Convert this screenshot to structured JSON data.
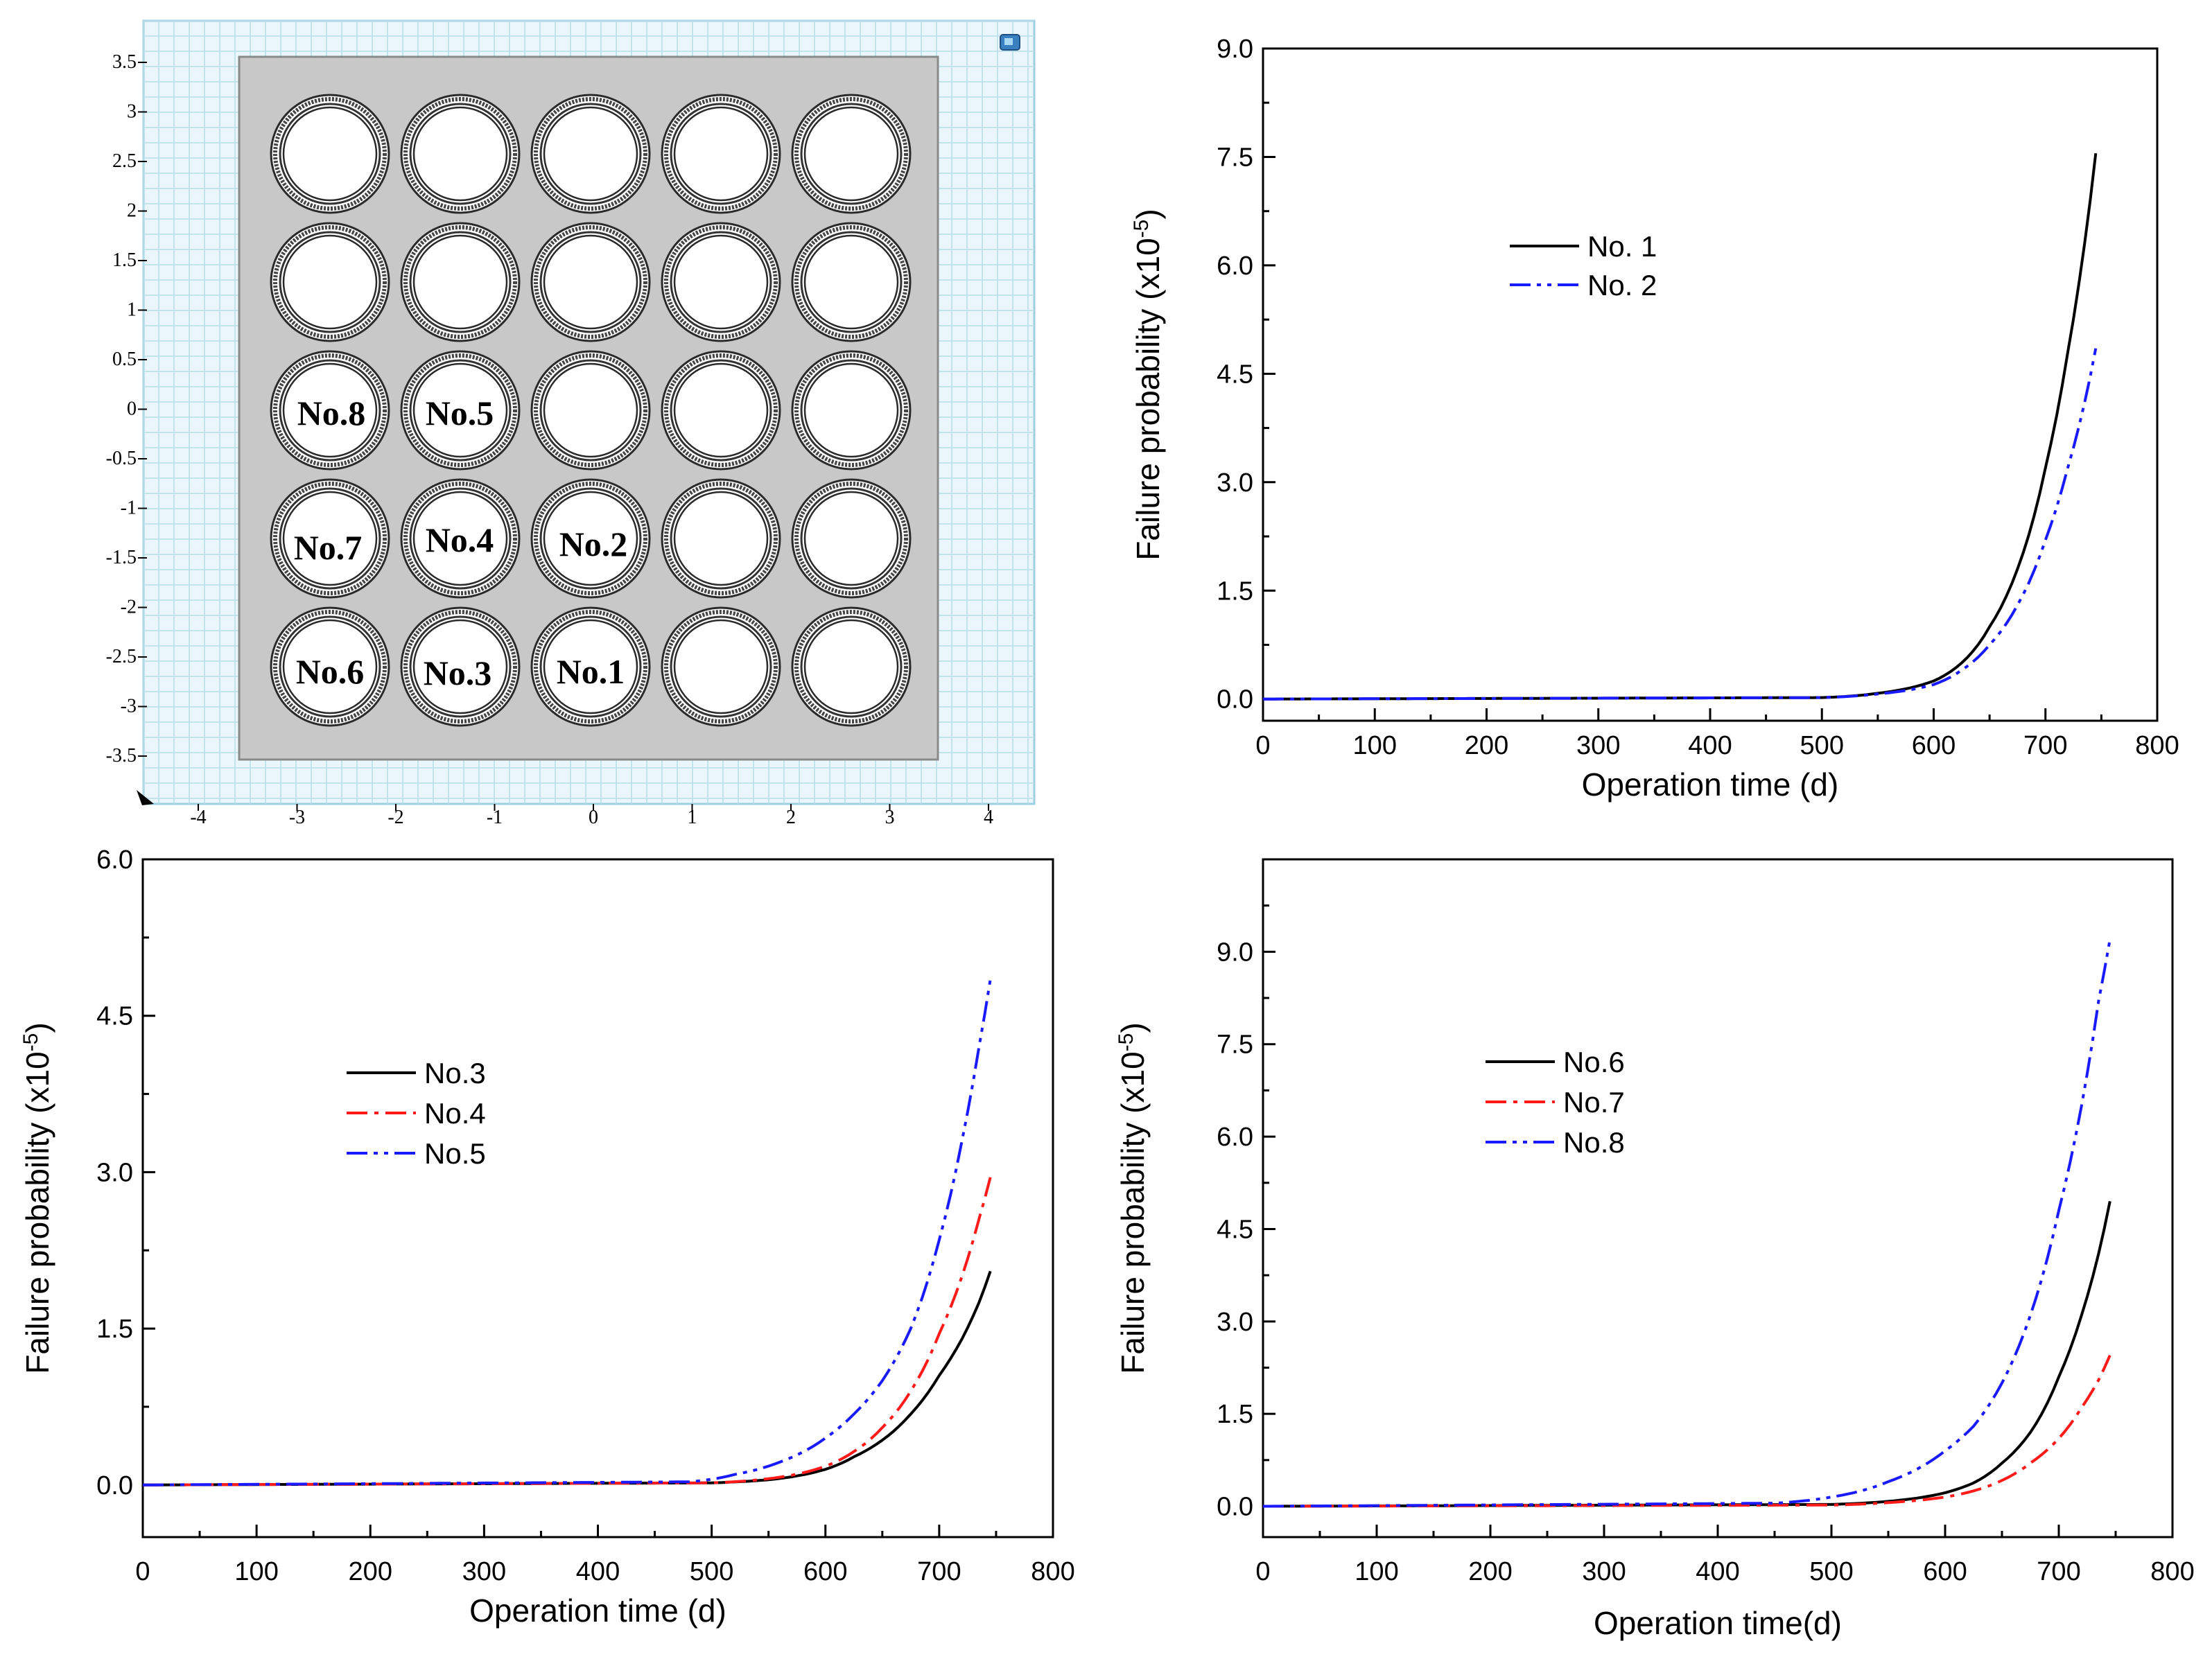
{
  "colors": {
    "black": "#000000",
    "red": "#ff1a1a",
    "blue": "#1a1aff",
    "grid_bg": "#eaf6fb",
    "grid_line": "#b8dde8",
    "plate": "#c8c8c8"
  },
  "geometry_panel": {
    "icon": "view-cube-icon",
    "y_ticks": [
      "3.5",
      "3",
      "2.5",
      "2",
      "1.5",
      "1",
      "0.5",
      "0",
      "-0.5",
      "-1",
      "-1.5",
      "-2",
      "-2.5",
      "-3",
      "-3.5"
    ],
    "x_ticks": [
      "-4",
      "-3",
      "-2",
      "-1",
      "0",
      "1",
      "2",
      "3",
      "4"
    ],
    "labels": {
      "no8": "No.8",
      "no5": "No.5",
      "no7": "No.7",
      "no4": "No.4",
      "no2": "No.2",
      "no6": "No.6",
      "no3": "No.3",
      "no1": "No.1"
    }
  },
  "chart_data": [
    {
      "type": "line",
      "title": "",
      "xlabel": "Operation time (d)",
      "ylabel": "Failure probability (x10",
      "ylabel_sup": "-5",
      "ylabel_end": ")",
      "xlim": [
        0,
        800
      ],
      "ylim": [
        -0.3,
        9.0
      ],
      "xticks": [
        0,
        100,
        200,
        300,
        400,
        500,
        600,
        700,
        800
      ],
      "yticks": [
        0.0,
        1.5,
        3.0,
        4.5,
        6.0,
        7.5,
        9.0
      ],
      "ytick_labels": [
        "0.0",
        "1.5",
        "3.0",
        "4.5",
        "6.0",
        "7.5",
        "9.0"
      ],
      "legend": "upper-left",
      "series": [
        {
          "name": "No. 1",
          "style": "solid",
          "color": "#000000",
          "x": [
            0,
            500,
            550,
            600,
            625,
            650,
            675,
            700,
            720,
            735,
            745
          ],
          "y": [
            0,
            0.02,
            0.08,
            0.25,
            0.5,
            1.0,
            1.8,
            3.2,
            4.8,
            6.3,
            7.55
          ]
        },
        {
          "name": "No. 2",
          "style": "dashdotdot",
          "color": "#1a1aff",
          "x": [
            0,
            500,
            550,
            600,
            625,
            650,
            675,
            700,
            720,
            735,
            745
          ],
          "y": [
            0,
            0.02,
            0.07,
            0.2,
            0.4,
            0.75,
            1.3,
            2.2,
            3.2,
            4.1,
            4.85
          ]
        }
      ]
    },
    {
      "type": "line",
      "title": "",
      "xlabel": "Operation time (d)",
      "ylabel": "Failure probability (x10",
      "ylabel_sup": "-5",
      "ylabel_end": ")",
      "xlim": [
        0,
        800
      ],
      "ylim": [
        -0.5,
        6.0
      ],
      "xticks": [
        0,
        100,
        200,
        300,
        400,
        500,
        600,
        700,
        800
      ],
      "yticks": [
        0.0,
        1.5,
        3.0,
        4.5,
        6.0
      ],
      "ytick_labels": [
        "0.0",
        "1.5",
        "3.0",
        "4.5",
        "6.0"
      ],
      "legend": "upper-left",
      "series": [
        {
          "name": "No.3",
          "style": "solid",
          "color": "#000000",
          "x": [
            0,
            500,
            550,
            600,
            625,
            650,
            675,
            700,
            720,
            735,
            745
          ],
          "y": [
            0,
            0.02,
            0.05,
            0.15,
            0.27,
            0.43,
            0.68,
            1.05,
            1.4,
            1.75,
            2.05
          ]
        },
        {
          "name": "No.4",
          "style": "dashdot",
          "color": "#ff1a1a",
          "x": [
            0,
            500,
            550,
            600,
            625,
            650,
            675,
            700,
            720,
            735,
            745
          ],
          "y": [
            0,
            0.02,
            0.06,
            0.18,
            0.32,
            0.55,
            0.9,
            1.45,
            2.0,
            2.55,
            2.95
          ]
        },
        {
          "name": "No.5",
          "style": "dashdotdot",
          "color": "#1a1aff",
          "x": [
            0,
            480,
            520,
            560,
            600,
            625,
            650,
            675,
            700,
            720,
            735,
            745
          ],
          "y": [
            0,
            0.03,
            0.1,
            0.22,
            0.45,
            0.68,
            1.0,
            1.5,
            2.35,
            3.3,
            4.2,
            4.85
          ]
        }
      ]
    },
    {
      "type": "line",
      "title": "",
      "xlabel": "Operation time(d)",
      "ylabel": "Failure probability (x10",
      "ylabel_sup": "-5",
      "ylabel_end": ")",
      "xlim": [
        0,
        800
      ],
      "ylim": [
        -0.5,
        10.5
      ],
      "xticks": [
        0,
        100,
        200,
        300,
        400,
        500,
        600,
        700,
        800
      ],
      "yticks": [
        0.0,
        1.5,
        3.0,
        4.5,
        6.0,
        7.5,
        9.0
      ],
      "ytick_labels": [
        "0.0",
        "1.5",
        "3.0",
        "4.5",
        "6.0",
        "7.5",
        "9.0"
      ],
      "legend": "upper-left",
      "series": [
        {
          "name": "No.6",
          "style": "solid",
          "color": "#000000",
          "x": [
            0,
            500,
            550,
            600,
            625,
            650,
            675,
            700,
            720,
            735,
            745
          ],
          "y": [
            0,
            0.03,
            0.08,
            0.22,
            0.38,
            0.7,
            1.2,
            2.1,
            3.1,
            4.1,
            4.95
          ]
        },
        {
          "name": "No.7",
          "style": "dashdot",
          "color": "#ff1a1a",
          "x": [
            0,
            500,
            550,
            600,
            625,
            650,
            675,
            700,
            720,
            735,
            745
          ],
          "y": [
            0,
            0.02,
            0.06,
            0.15,
            0.25,
            0.42,
            0.7,
            1.1,
            1.6,
            2.05,
            2.45
          ]
        },
        {
          "name": "No.8",
          "style": "dashdotdot",
          "color": "#1a1aff",
          "x": [
            0,
            450,
            500,
            550,
            600,
            625,
            650,
            675,
            700,
            720,
            735,
            745
          ],
          "y": [
            0,
            0.05,
            0.15,
            0.4,
            0.9,
            1.3,
            2.0,
            3.1,
            4.8,
            6.5,
            8.2,
            9.2
          ]
        }
      ]
    }
  ]
}
